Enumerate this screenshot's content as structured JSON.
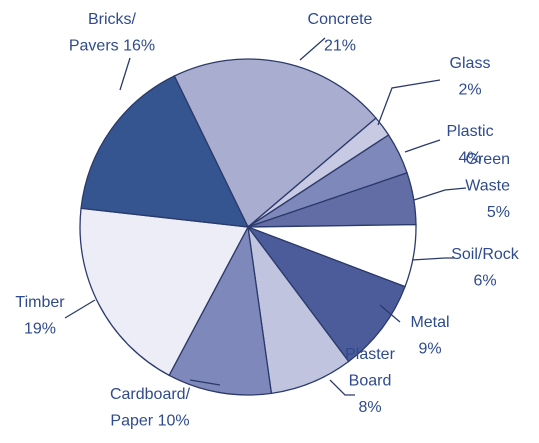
{
  "chart_data": {
    "type": "pie",
    "categories": [
      [
        "Concrete"
      ],
      [
        "Glass"
      ],
      [
        "Plastic"
      ],
      [
        "Green",
        "Waste"
      ],
      [
        "Soil/Rock"
      ],
      [
        "Metal"
      ],
      [
        "Plaster",
        "Board"
      ],
      [
        "Cardboard/",
        "Paper"
      ],
      [
        "Timber"
      ],
      [
        "Bricks/",
        "Pavers"
      ]
    ],
    "values": [
      21,
      2,
      4,
      5,
      6,
      9,
      8,
      10,
      19,
      16
    ],
    "value_labels": [
      "21%",
      "2%",
      "4%",
      "5%",
      "6%",
      "9%",
      "8%",
      "10%",
      "19%",
      "16%"
    ],
    "colors": [
      "#a9aed1",
      "#c7cae2",
      "#7f88ba",
      "#616da4",
      "#ffffff",
      "#4c5c9b",
      "#c0c4df",
      "#7f88ba",
      "#ecedf6",
      "#34558f"
    ]
  }
}
